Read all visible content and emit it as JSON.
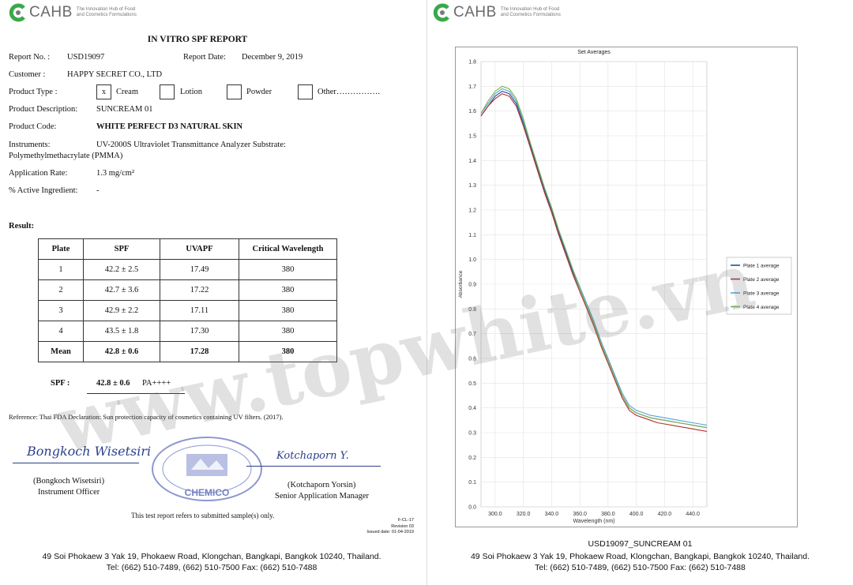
{
  "logo": {
    "word": "CAHB",
    "tag_line1": "The Innovation Hub of Food",
    "tag_line2": "and Cosmetics Formulations",
    "accent": "#3aa84a"
  },
  "report": {
    "title": "IN VITRO SPF REPORT",
    "report_no_label": "Report No. :",
    "report_no": "USD19097",
    "report_date_label": "Report Date:",
    "report_date": "December 9, 2019",
    "customer_label": "Customer   :",
    "customer": "HAPPY SECRET CO., LTD",
    "product_type_label": "Product Type :",
    "product_types": [
      {
        "label": "Cream",
        "checked": "x"
      },
      {
        "label": "Lotion",
        "checked": ""
      },
      {
        "label": "Powder",
        "checked": ""
      },
      {
        "label": "Other…………….",
        "checked": ""
      }
    ],
    "description_label": "Product Description:",
    "description": "SUNCREAM 01",
    "code_label": "Product Code:",
    "code": "WHITE PERFECT D3 NATURAL SKIN",
    "instruments_label": "Instruments:",
    "instruments": "UV-2000S Ultraviolet Transmittance Analyzer  Substrate:",
    "instruments_line2": "Polymethylmethacrylate (PMMA)",
    "rate_label": "Application Rate:",
    "rate": "1.3 mg/cm²",
    "active_label": "% Active Ingredient:",
    "active": "-",
    "result_label": "Result:",
    "table": {
      "headers": [
        "Plate",
        "SPF",
        "UVAPF",
        "Critical Wavelength"
      ],
      "rows": [
        [
          "1",
          "42.2 ± 2.5",
          "17.49",
          "380"
        ],
        [
          "2",
          "42.7 ± 3.6",
          "17.22",
          "380"
        ],
        [
          "3",
          "42.9 ± 2.2",
          "17.11",
          "380"
        ],
        [
          "4",
          "43.5 ± 1.8",
          "17.30",
          "380"
        ]
      ],
      "mean": [
        "Mean",
        "42.8 ± 0.6",
        "17.28",
        "380"
      ]
    },
    "spf_label": "SPF :",
    "spf_value": "42.8 ± 0.6",
    "pa": "PA++++",
    "reference": "Reference: Thai FDA Declaration: Sun protection capacity of cosmetics containing UV filters. (2017).",
    "signer1_sig": "Bongkoch Wisetsiri",
    "signer1_name": "(Bongkoch Wisetsiri)",
    "signer1_title": "Instrument Officer",
    "signer2_sig": "Kotchaporn Y.",
    "signer2_name": "(Kotchaporn Yorsin)",
    "signer2_title": "Senior Application Manager",
    "stamp_text": "CHEMICO",
    "note": "This test report refers to submitted sample(s) only.",
    "form_code": "F-CL-17",
    "revision": "Revision 03",
    "issued": "Issued date: 01-04-2019"
  },
  "address": {
    "line1": "49 Soi Phokaew 3 Yak 19, Phokaew Road, Klongchan, Bangkapi, Bangkok 10240, Thailand.",
    "line2": "Tel: (662) 510-7489, (662) 510-7500  Fax: (662) 510-7488"
  },
  "watermark": "www.topwhite.vn",
  "chart_caption": "USD19097_SUNCREAM 01",
  "chart_data": {
    "type": "line",
    "title": "Set Averages",
    "xlabel": "Wavelength (nm)",
    "ylabel": "Absorbance",
    "xlim": [
      290,
      450
    ],
    "ylim": [
      0,
      1.8
    ],
    "x_ticks": [
      "300.0",
      "320.0",
      "340.0",
      "360.0",
      "380.0",
      "400.0",
      "420.0",
      "440.0"
    ],
    "y_ticks": [
      "0.0",
      "0.1",
      "0.2",
      "0.3",
      "0.4",
      "0.5",
      "0.6",
      "0.7",
      "0.8",
      "0.9",
      "1.0",
      "1.1",
      "1.2",
      "1.3",
      "1.4",
      "1.5",
      "1.6",
      "1.7",
      "1.8"
    ],
    "grid": true,
    "legend_position": "right",
    "x": [
      290,
      295,
      300,
      305,
      310,
      315,
      320,
      325,
      330,
      335,
      340,
      345,
      350,
      355,
      360,
      365,
      370,
      375,
      380,
      385,
      390,
      395,
      400,
      405,
      410,
      415,
      420,
      425,
      430,
      435,
      440,
      445,
      450
    ],
    "series": [
      {
        "name": "Plate 1 average",
        "color": "#1f4e9a",
        "values": [
          1.58,
          1.62,
          1.66,
          1.68,
          1.67,
          1.63,
          1.55,
          1.46,
          1.37,
          1.28,
          1.2,
          1.11,
          1.03,
          0.95,
          0.88,
          0.81,
          0.74,
          0.66,
          0.59,
          0.52,
          0.45,
          0.4,
          0.38,
          0.37,
          0.36,
          0.355,
          0.35,
          0.345,
          0.34,
          0.335,
          0.33,
          0.325,
          0.32
        ]
      },
      {
        "name": "Plate 2 average",
        "color": "#b03030",
        "values": [
          1.58,
          1.62,
          1.65,
          1.67,
          1.66,
          1.62,
          1.54,
          1.45,
          1.36,
          1.27,
          1.19,
          1.1,
          1.02,
          0.94,
          0.87,
          0.8,
          0.73,
          0.65,
          0.58,
          0.51,
          0.44,
          0.39,
          0.37,
          0.36,
          0.35,
          0.34,
          0.335,
          0.33,
          0.325,
          0.32,
          0.315,
          0.31,
          0.305
        ]
      },
      {
        "name": "Plate 3 average",
        "color": "#5aa0d8",
        "values": [
          1.59,
          1.63,
          1.67,
          1.69,
          1.68,
          1.64,
          1.56,
          1.47,
          1.38,
          1.29,
          1.21,
          1.12,
          1.04,
          0.96,
          0.89,
          0.82,
          0.75,
          0.67,
          0.6,
          0.53,
          0.46,
          0.41,
          0.39,
          0.38,
          0.37,
          0.365,
          0.36,
          0.355,
          0.35,
          0.345,
          0.34,
          0.335,
          0.33
        ]
      },
      {
        "name": "Plate 4 average",
        "color": "#7ab648",
        "values": [
          1.59,
          1.64,
          1.68,
          1.7,
          1.69,
          1.65,
          1.57,
          1.47,
          1.38,
          1.29,
          1.21,
          1.12,
          1.04,
          0.96,
          0.88,
          0.81,
          0.74,
          0.66,
          0.59,
          0.52,
          0.45,
          0.4,
          0.38,
          0.37,
          0.36,
          0.355,
          0.35,
          0.345,
          0.34,
          0.335,
          0.33,
          0.325,
          0.32
        ]
      }
    ]
  }
}
